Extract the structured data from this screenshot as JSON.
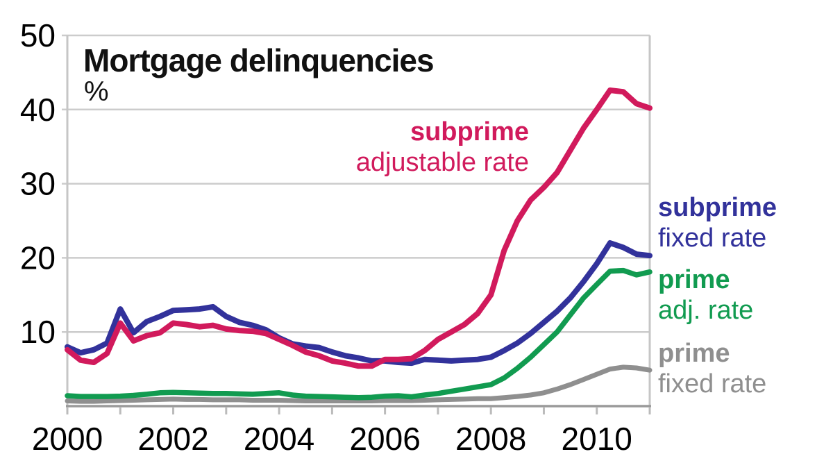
{
  "chart_data": {
    "type": "line",
    "title": "Mortgage delinquencies",
    "unit_label": "%",
    "xlabel": "",
    "ylabel": "%",
    "xlim": [
      2000,
      2011
    ],
    "ylim": [
      0,
      50
    ],
    "grid": "horizontal",
    "legend_position": "labels-near-lines",
    "y_ticks": [
      10,
      20,
      30,
      40,
      50
    ],
    "x_tick_labels": [
      "2000",
      "2002",
      "2004",
      "2006",
      "2008",
      "2010"
    ],
    "x_ticks_labeled_years": [
      2000,
      2002,
      2004,
      2006,
      2008,
      2010
    ],
    "x_ticks_minor_years": [
      2000,
      2001,
      2002,
      2003,
      2004,
      2005,
      2006,
      2007,
      2008,
      2009,
      2010,
      2011
    ],
    "x": [
      2000.0,
      2000.25,
      2000.5,
      2000.75,
      2001.0,
      2001.25,
      2001.5,
      2001.75,
      2002.0,
      2002.25,
      2002.5,
      2002.75,
      2003.0,
      2003.25,
      2003.5,
      2003.75,
      2004.0,
      2004.25,
      2004.5,
      2004.75,
      2005.0,
      2005.25,
      2005.5,
      2005.75,
      2006.0,
      2006.25,
      2006.5,
      2006.75,
      2007.0,
      2007.25,
      2007.5,
      2007.75,
      2008.0,
      2008.25,
      2008.5,
      2008.75,
      2009.0,
      2009.25,
      2009.5,
      2009.75,
      2010.0,
      2010.25,
      2010.5,
      2010.75,
      2011.0
    ],
    "series": [
      {
        "name": "subprime adjustable rate",
        "label_lines": [
          "subprime",
          "adjustable rate"
        ],
        "color": "#d11a5c",
        "stroke_width": 8,
        "values": [
          7.6,
          6.2,
          5.9,
          7.1,
          11.2,
          8.8,
          9.5,
          9.9,
          11.2,
          11.0,
          10.7,
          10.9,
          10.4,
          10.2,
          10.1,
          9.8,
          9.0,
          8.2,
          7.3,
          6.8,
          6.1,
          5.8,
          5.4,
          5.4,
          6.3,
          6.3,
          6.4,
          7.5,
          9.0,
          10.0,
          11.0,
          12.5,
          15.0,
          21.0,
          25.0,
          27.8,
          29.5,
          31.5,
          34.5,
          37.5,
          40.0,
          42.6,
          42.4,
          40.8,
          40.2
        ]
      },
      {
        "name": "subprime fixed rate",
        "label_lines": [
          "subprime",
          "fixed rate"
        ],
        "color": "#32329b",
        "stroke_width": 8,
        "values": [
          8.0,
          7.2,
          7.6,
          8.5,
          13.1,
          9.9,
          11.4,
          12.1,
          12.9,
          13.0,
          13.1,
          13.4,
          12.1,
          11.3,
          10.9,
          10.3,
          9.2,
          8.4,
          8.1,
          7.9,
          7.3,
          6.8,
          6.5,
          6.1,
          6.1,
          5.9,
          5.8,
          6.3,
          6.2,
          6.1,
          6.2,
          6.3,
          6.6,
          7.5,
          8.5,
          9.8,
          11.3,
          12.8,
          14.6,
          16.8,
          19.2,
          22.0,
          21.4,
          20.5,
          20.3
        ]
      },
      {
        "name": "prime adj. rate",
        "label_lines": [
          "prime",
          "adj. rate"
        ],
        "color": "#119b50",
        "stroke_width": 7.5,
        "values": [
          1.4,
          1.3,
          1.3,
          1.3,
          1.35,
          1.45,
          1.6,
          1.8,
          1.85,
          1.8,
          1.75,
          1.7,
          1.7,
          1.65,
          1.6,
          1.7,
          1.8,
          1.5,
          1.35,
          1.3,
          1.25,
          1.2,
          1.15,
          1.2,
          1.35,
          1.4,
          1.25,
          1.5,
          1.7,
          2.0,
          2.3,
          2.6,
          2.9,
          3.8,
          5.1,
          6.6,
          8.3,
          10.0,
          12.3,
          14.6,
          16.4,
          18.2,
          18.3,
          17.7,
          18.1
        ]
      },
      {
        "name": "prime fixed rate",
        "label_lines": [
          "prime",
          "fixed rate"
        ],
        "color": "#8f8f8f",
        "stroke_width": 7,
        "values": [
          0.7,
          0.65,
          0.65,
          0.7,
          0.75,
          0.8,
          0.85,
          0.9,
          0.95,
          0.9,
          0.9,
          0.85,
          0.85,
          0.85,
          0.8,
          0.8,
          0.8,
          0.75,
          0.7,
          0.7,
          0.7,
          0.7,
          0.7,
          0.7,
          0.75,
          0.75,
          0.75,
          0.8,
          0.85,
          0.9,
          0.95,
          1.0,
          1.0,
          1.15,
          1.3,
          1.5,
          1.8,
          2.3,
          2.9,
          3.6,
          4.3,
          5.0,
          5.25,
          5.15,
          4.85
        ]
      }
    ],
    "colors": {
      "grid": "#cccccc",
      "plot_border": "#c6c6c6",
      "x_axis": "#9a9a9a",
      "axis_tick": "#bbbbbb",
      "text": "#000000",
      "title_text": "#111111"
    }
  }
}
